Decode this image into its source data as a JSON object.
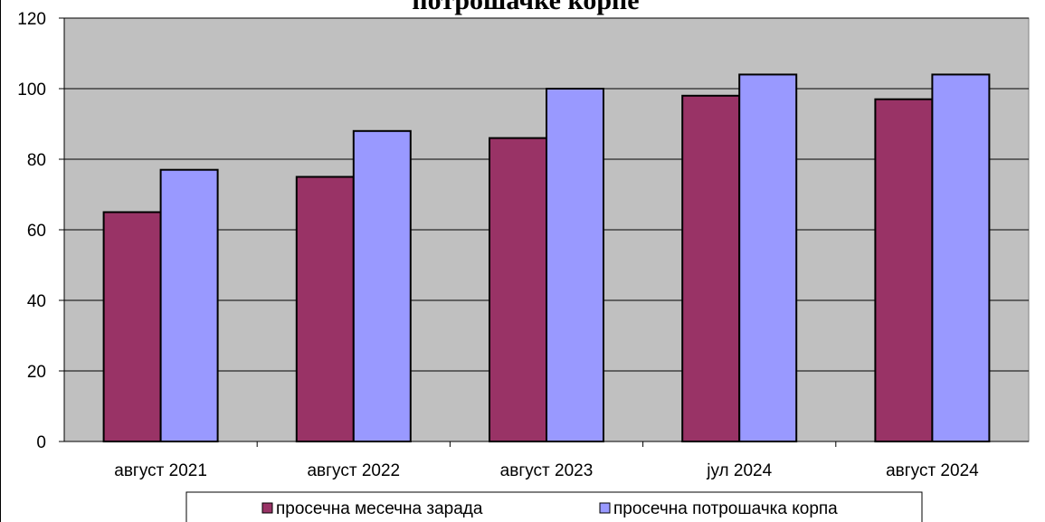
{
  "chart_data": {
    "type": "bar",
    "title": "потрошачке корпе",
    "categories": [
      "август 2021",
      "август 2022",
      "август 2023",
      "јул 2024",
      "август 2024"
    ],
    "series": [
      {
        "name": "просечна месечна зарада",
        "values": [
          65,
          75,
          86,
          98,
          97
        ],
        "color": "#993366"
      },
      {
        "name": "просечна потрошачка корпа",
        "values": [
          77,
          88,
          100,
          104,
          104
        ],
        "color": "#9999ff"
      }
    ],
    "ylim": [
      0,
      120
    ],
    "yticks": [
      0,
      20,
      40,
      60,
      80,
      100,
      120
    ],
    "grid": true,
    "plot_background": "#c0c0c0",
    "legend_position": "bottom"
  }
}
